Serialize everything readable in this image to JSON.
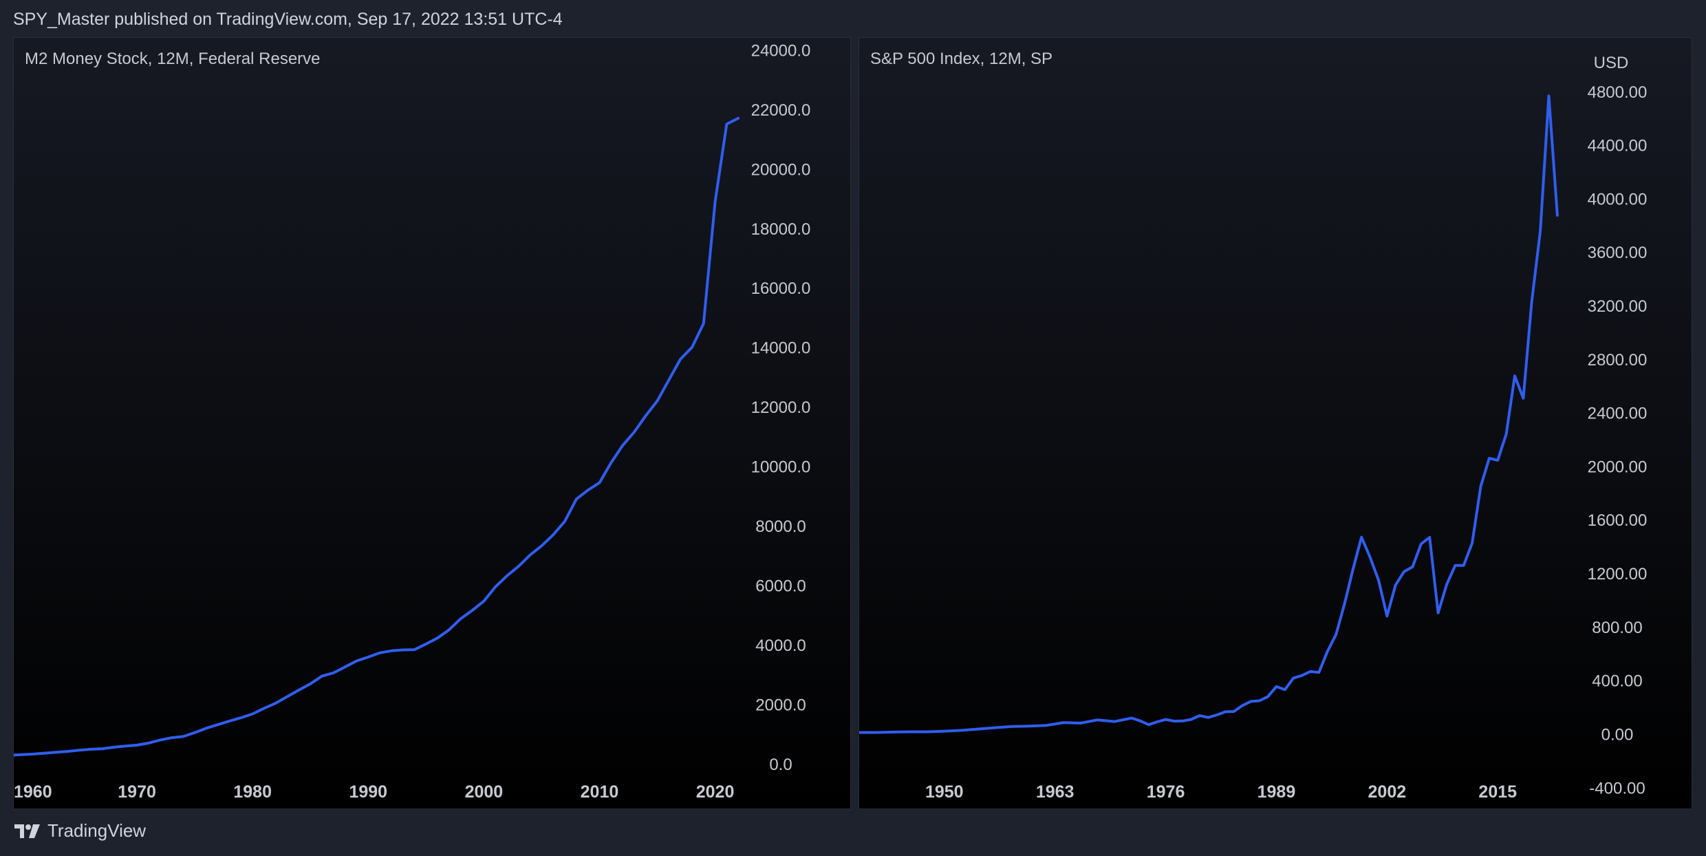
{
  "header": {
    "title": "SPY_Master published on TradingView.com, Sep 17, 2022 13:51 UTC-4"
  },
  "footer": {
    "brand": "TradingView"
  },
  "theme": {
    "line_color": "#2f5ef0",
    "axis_text_color": "#c7cad1",
    "bg_color": "#1e222d"
  },
  "chart_data": [
    {
      "type": "line",
      "title": "M2 Money Stock, 12M, Federal Reserve",
      "xlim": [
        1960,
        2023
      ],
      "ylim": [
        -1500,
        24400
      ],
      "x_ticks": [
        1960,
        1970,
        1980,
        1990,
        2000,
        2010,
        2020
      ],
      "y_ticks": [
        "24000.0",
        "22000.0",
        "20000.0",
        "18000.0",
        "16000.0",
        "14000.0",
        "12000.0",
        "10000.0",
        "8000.0",
        "6000.0",
        "4000.0",
        "2000.0",
        "0.0"
      ],
      "y_tick_values": [
        24000,
        22000,
        20000,
        18000,
        16000,
        14000,
        12000,
        10000,
        8000,
        6000,
        4000,
        2000,
        0
      ],
      "unit_label": "",
      "series": [
        {
          "name": "M2",
          "x": [
            1959,
            1960,
            1961,
            1962,
            1963,
            1964,
            1965,
            1966,
            1967,
            1968,
            1969,
            1970,
            1971,
            1972,
            1973,
            1974,
            1975,
            1976,
            1977,
            1978,
            1979,
            1980,
            1981,
            1982,
            1983,
            1984,
            1985,
            1986,
            1987,
            1988,
            1989,
            1990,
            1991,
            1992,
            1993,
            1994,
            1995,
            1996,
            1997,
            1998,
            1999,
            2000,
            2001,
            2002,
            2003,
            2004,
            2005,
            2006,
            2007,
            2008,
            2009,
            2010,
            2011,
            2012,
            2013,
            2014,
            2015,
            2016,
            2017,
            2018,
            2019,
            2020,
            2021,
            2022
          ],
          "values": [
            290,
            310,
            330,
            360,
            390,
            420,
            460,
            490,
            510,
            560,
            600,
            630,
            700,
            800,
            880,
            920,
            1050,
            1200,
            1320,
            1440,
            1550,
            1680,
            1870,
            2040,
            2260,
            2480,
            2690,
            2950,
            3060,
            3260,
            3460,
            3590,
            3730,
            3800,
            3830,
            3840,
            4030,
            4230,
            4510,
            4880,
            5160,
            5470,
            5950,
            6320,
            6640,
            7020,
            7330,
            7700,
            8150,
            8900,
            9200,
            9450,
            10120,
            10700,
            11150,
            11700,
            12200,
            12900,
            13600,
            14000,
            14800,
            18900,
            21500,
            21700
          ]
        }
      ]
    },
    {
      "type": "line",
      "title": "S&P 500 Index, 12M, SP",
      "xlim": [
        1940,
        2025
      ],
      "ylim": [
        -558,
        5200
      ],
      "x_ticks": [
        1950,
        1963,
        1976,
        1989,
        2002,
        2015
      ],
      "y_ticks": [
        "4800.00",
        "4400.00",
        "4000.00",
        "3600.00",
        "3200.00",
        "2800.00",
        "2400.00",
        "2000.00",
        "1600.00",
        "1200.00",
        "800.00",
        "400.00",
        "0.00",
        "-400.00"
      ],
      "y_tick_values": [
        4800,
        4400,
        4000,
        3600,
        3200,
        2800,
        2400,
        2000,
        1600,
        1200,
        800,
        400,
        0,
        -400
      ],
      "unit_label": "USD",
      "series": [
        {
          "name": "S&P 500",
          "x": [
            1940,
            1942,
            1944,
            1946,
            1948,
            1950,
            1952,
            1954,
            1956,
            1958,
            1960,
            1962,
            1964,
            1966,
            1968,
            1970,
            1972,
            1973,
            1974,
            1975,
            1976,
            1977,
            1978,
            1979,
            1980,
            1981,
            1982,
            1983,
            1984,
            1985,
            1986,
            1987,
            1988,
            1989,
            1990,
            1991,
            1992,
            1993,
            1994,
            1995,
            1996,
            1997,
            1998,
            1999,
            2000,
            2001,
            2002,
            2003,
            2004,
            2005,
            2006,
            2007,
            2008,
            2009,
            2010,
            2011,
            2012,
            2013,
            2014,
            2015,
            2016,
            2017,
            2018,
            2019,
            2020,
            2021,
            2022
          ],
          "values": [
            10,
            10,
            13,
            15,
            15,
            20,
            26,
            36,
            46,
            55,
            58,
            63,
            84,
            80,
            104,
            92,
            118,
            97,
            68,
            90,
            107,
            95,
            96,
            108,
            136,
            122,
            141,
            165,
            167,
            211,
            242,
            247,
            278,
            353,
            330,
            417,
            436,
            466,
            459,
            616,
            741,
            970,
            1229,
            1469,
            1320,
            1148,
            880,
            1112,
            1212,
            1248,
            1418,
            1468,
            903,
            1115,
            1258,
            1258,
            1426,
            1848,
            2059,
            2044,
            2239,
            2674,
            2507,
            3231,
            3756,
            4766,
            3874
          ]
        }
      ]
    }
  ]
}
